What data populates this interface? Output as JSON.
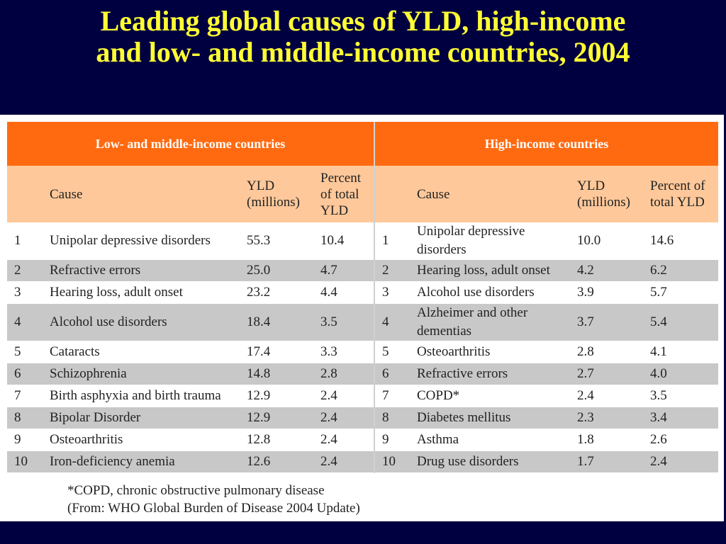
{
  "title_line1": "Leading global causes of YLD, high-income",
  "title_line2": "and low- and middle-income countries, 2004",
  "table": {
    "group_left": "Low- and middle-income countries",
    "group_right": "High-income countries",
    "headers_left": {
      "cause": "Cause",
      "yld_l1": "YLD",
      "yld_l2": "(millions)",
      "pct_l1": "Percent",
      "pct_l2": "of total",
      "pct_l3": "YLD"
    },
    "headers_right": {
      "cause": "Cause",
      "yld_l1": "YLD",
      "yld_l2": "(millions)",
      "pct_l1": "Percent of",
      "pct_l2": "total YLD"
    },
    "rows": [
      {
        "rank_l": "1",
        "cause_l": "Unipolar depressive disorders",
        "yld_l": "55.3",
        "pct_l": "10.4",
        "rank_r": "1",
        "cause_r_1": "Unipolar depressive",
        "cause_r_2": "disorders",
        "yld_r": "10.0",
        "pct_r": "14.6"
      },
      {
        "rank_l": "2",
        "cause_l": "Refractive errors",
        "yld_l": "25.0",
        "pct_l": "4.7",
        "rank_r": "2",
        "cause_r_1": "Hearing loss, adult onset",
        "yld_r": "4.2",
        "pct_r": "6.2"
      },
      {
        "rank_l": "3",
        "cause_l": "Hearing loss, adult onset",
        "yld_l": "23.2",
        "pct_l": "4.4",
        "rank_r": "3",
        "cause_r_1": "Alcohol use disorders",
        "yld_r": "3.9",
        "pct_r": "5.7"
      },
      {
        "rank_l": "4",
        "cause_l": "Alcohol use disorders",
        "yld_l": "18.4",
        "pct_l": "3.5",
        "rank_r": "4",
        "cause_r_1": "Alzheimer and other",
        "cause_r_2": "dementias",
        "yld_r": "3.7",
        "pct_r": "5.4"
      },
      {
        "rank_l": "5",
        "cause_l": "Cataracts",
        "yld_l": "17.4",
        "pct_l": "3.3",
        "rank_r": "5",
        "cause_r_1": "Osteoarthritis",
        "yld_r": "2.8",
        "pct_r": "4.1"
      },
      {
        "rank_l": "6",
        "cause_l": "Schizophrenia",
        "yld_l": "14.8",
        "pct_l": "2.8",
        "rank_r": "6",
        "cause_r_1": "Refractive errors",
        "yld_r": "2.7",
        "pct_r": "4.0"
      },
      {
        "rank_l": "7",
        "cause_l": "Birth asphyxia and birth trauma",
        "yld_l": "12.9",
        "pct_l": "2.4",
        "rank_r": "7",
        "cause_r_1": "COPD*",
        "yld_r": "2.4",
        "pct_r": "3.5"
      },
      {
        "rank_l": "8",
        "cause_l": "Bipolar Disorder",
        "yld_l": "12.9",
        "pct_l": "2.4",
        "rank_r": "8",
        "cause_r_1": "Diabetes mellitus",
        "yld_r": "2.3",
        "pct_r": "3.4"
      },
      {
        "rank_l": "9",
        "cause_l": "Osteoarthritis",
        "yld_l": "12.8",
        "pct_l": "2.4",
        "rank_r": "9",
        "cause_r_1": "Asthma",
        "yld_r": "1.8",
        "pct_r": "2.6"
      },
      {
        "rank_l": "10",
        "cause_l": "Iron-deficiency anemia",
        "yld_l": "12.6",
        "pct_l": "2.4",
        "rank_r": "10",
        "cause_r_1": "Drug use disorders",
        "yld_r": "1.7",
        "pct_r": "2.4"
      }
    ]
  },
  "footnote_line1": "*COPD, chronic obstructive pulmonary disease",
  "footnote_line2": "(From: WHO Global Burden of Disease 2004 Update)"
}
